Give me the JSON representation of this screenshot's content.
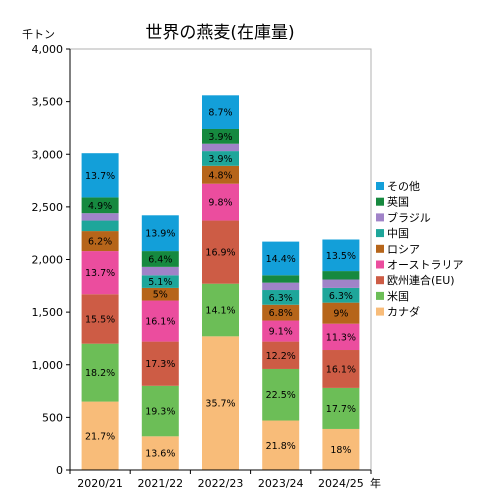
{
  "chart_data": {
    "type": "bar",
    "stacked": true,
    "title": "世界の燕麦(在庫量)",
    "y_unit_label": "千トン",
    "x_unit_label": "年",
    "ylim": [
      0,
      4000
    ],
    "y_ticks": [
      0,
      500,
      1000,
      1500,
      2000,
      2500,
      3000,
      3500,
      4000
    ],
    "y_tick_labels": [
      "0",
      "500",
      "1,000",
      "1,500",
      "2,000",
      "2,500",
      "3,000",
      "3,500",
      "4,000"
    ],
    "grid": false,
    "legend_position": "right",
    "categories": [
      "2020/21",
      "2021/22",
      "2022/23",
      "2023/24",
      "2024/25"
    ],
    "series": [
      {
        "name": "カナダ",
        "color": "#F8BC79",
        "values": [
          650,
          320,
          1270,
          470,
          390
        ],
        "labels": [
          "21.7%",
          "13.6%",
          "35.7%",
          "21.8%",
          "18%"
        ]
      },
      {
        "name": "米国",
        "color": "#6CBE57",
        "values": [
          550,
          480,
          500,
          490,
          390
        ],
        "labels": [
          "18.2%",
          "19.3%",
          "14.1%",
          "22.5%",
          "17.7%"
        ]
      },
      {
        "name": "欧州連合(EU)",
        "color": "#CD5C45",
        "values": [
          470,
          420,
          600,
          260,
          360
        ],
        "labels": [
          "15.5%",
          "17.3%",
          "16.9%",
          "12.2%",
          "16.1%"
        ]
      },
      {
        "name": "オーストラリア",
        "color": "#EB4D9E",
        "values": [
          410,
          390,
          350,
          200,
          250
        ],
        "labels": [
          "13.7%",
          "16.1%",
          "9.8%",
          "9.1%",
          "11.3%"
        ]
      },
      {
        "name": "ロシア",
        "color": "#B6651A",
        "values": [
          190,
          120,
          170,
          150,
          200
        ],
        "labels": [
          "6.2%",
          "5%",
          "4.8%",
          "6.8%",
          "9%"
        ]
      },
      {
        "name": "中国",
        "color": "#1EA69A",
        "values": [
          100,
          120,
          140,
          140,
          140
        ],
        "labels": [
          "",
          "5.1%",
          "3.9%",
          "6.3%",
          "6.3%"
        ]
      },
      {
        "name": "ブラジル",
        "color": "#A083C8",
        "values": [
          70,
          80,
          70,
          70,
          80
        ],
        "labels": [
          "",
          "",
          "",
          "",
          ""
        ]
      },
      {
        "name": "英国",
        "color": "#16893F",
        "values": [
          150,
          150,
          140,
          70,
          80
        ],
        "labels": [
          "4.9%",
          "6.4%",
          "3.9%",
          "",
          ""
        ]
      },
      {
        "name": "その他",
        "color": "#139FD9",
        "values": [
          420,
          340,
          320,
          320,
          300
        ],
        "labels": [
          "13.7%",
          "13.9%",
          "8.7%",
          "14.4%",
          "13.5%"
        ]
      }
    ]
  }
}
